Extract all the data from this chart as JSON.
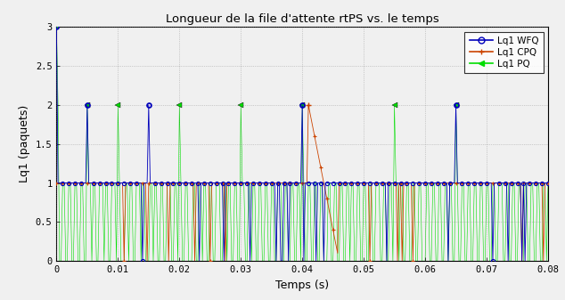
{
  "title": "Longueur de la file d'attente rtPS vs. le temps",
  "xlabel": "Temps (s)",
  "ylabel": "Lq1 (paquets)",
  "xlim": [
    0,
    0.08
  ],
  "ylim": [
    0,
    3
  ],
  "yticks": [
    0,
    0.5,
    1.0,
    1.5,
    2.0,
    2.5,
    3.0
  ],
  "xticks": [
    0,
    0.01,
    0.02,
    0.03,
    0.04,
    0.05,
    0.06,
    0.07,
    0.08
  ],
  "legend_labels": [
    "Lq1 WFQ",
    "Lq1 CPQ",
    "Lq1 PQ"
  ],
  "wfq_color": "#0000bb",
  "cpq_color": "#cc4400",
  "pq_color": "#00dd00",
  "background_color": "#f0f0f0",
  "grid_color": "#888888",
  "figsize": [
    6.34,
    3.37
  ],
  "dpi": 100
}
